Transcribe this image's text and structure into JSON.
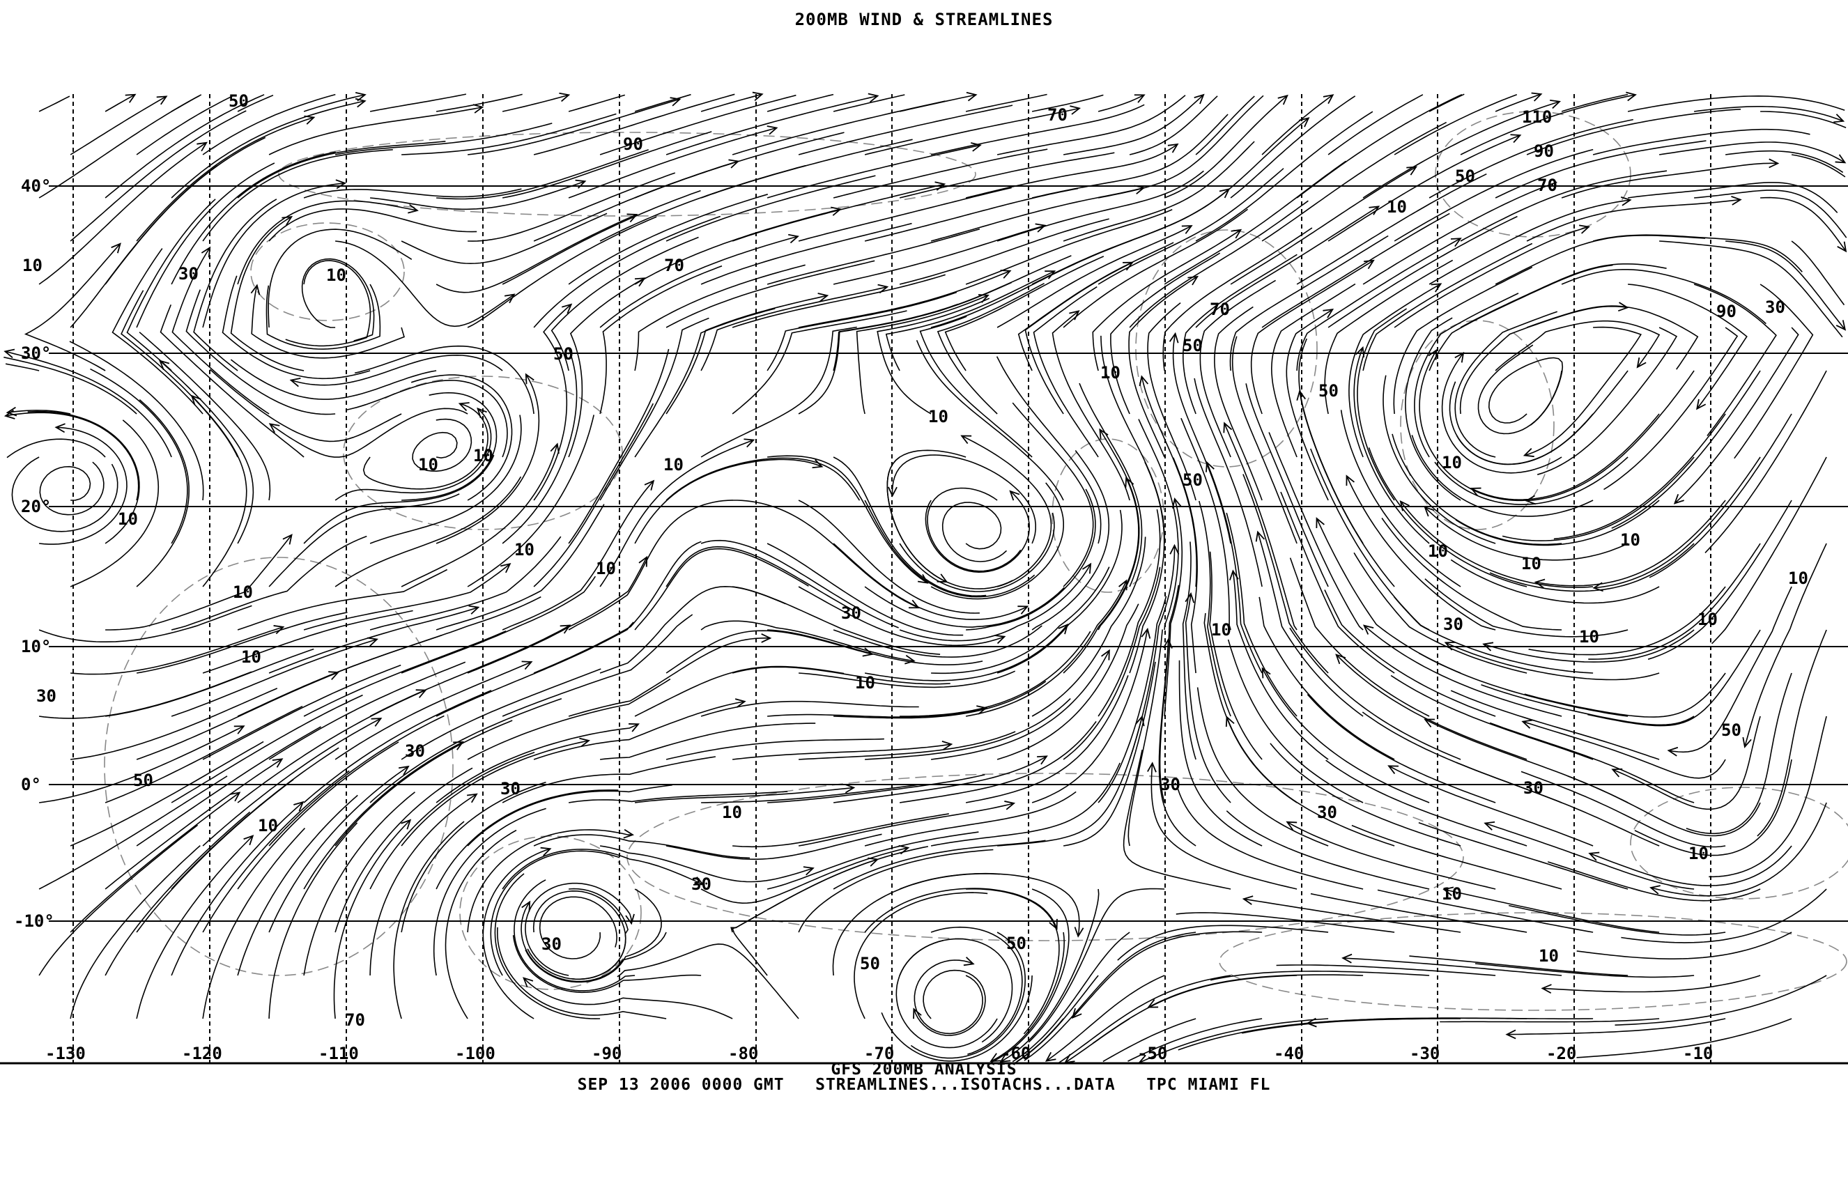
{
  "title": "200MB WIND & STREAMLINES",
  "footer": {
    "line1": "GFS 200MB ANALYSIS",
    "line2": "SEP 13 2006 0000 GMT   STREAMLINES...ISOTACHS...DATA   TPC MIAMI FL"
  },
  "longitude_labels": [
    "-130",
    "-120",
    "-110",
    "-100",
    "-90",
    "-80",
    "-70",
    "-60",
    "-50",
    "-40",
    "-30",
    "-20",
    "-10"
  ],
  "latitude_labels": [
    "40°",
    "30°",
    "20°",
    "10°",
    "0°",
    "-10°"
  ],
  "isotach_labels": [
    "50",
    "90",
    "70",
    "110",
    "90",
    "50",
    "70",
    "10",
    "10",
    "30",
    "10",
    "70",
    "50",
    "70",
    "50",
    "10",
    "90",
    "30",
    "50",
    "10",
    "10",
    "10",
    "10",
    "50",
    "10",
    "10",
    "10",
    "10",
    "10",
    "10",
    "10",
    "10",
    "10",
    "30",
    "30",
    "10",
    "10",
    "10",
    "10",
    "10",
    "30",
    "50",
    "30",
    "50",
    "30",
    "30",
    "30",
    "10",
    "30",
    "10",
    "10",
    "30",
    "10",
    "30",
    "50",
    "10",
    "50",
    "70"
  ],
  "colors": {
    "lines": "#000000",
    "isotachs": "#888888",
    "background": "#ffffff"
  }
}
